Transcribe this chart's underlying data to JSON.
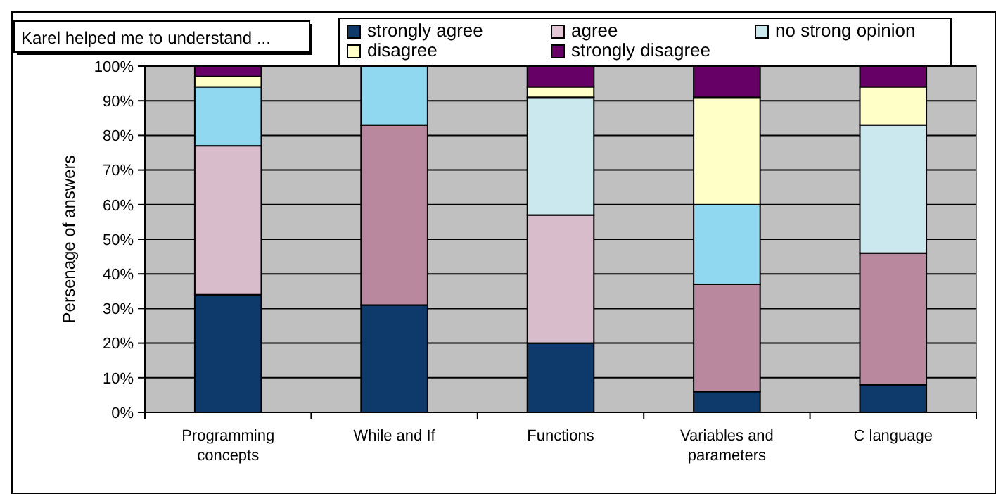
{
  "chart_data": {
    "type": "bar",
    "stacked": true,
    "title": "Karel helped me to understand ...",
    "ylabel": "Persenage of answers",
    "categories": [
      "Programming concepts",
      "While and If",
      "Functions",
      "Variables and parameters",
      "C language"
    ],
    "series": [
      {
        "name": "strongly agree",
        "color": "#0d3a6b",
        "values": [
          34,
          31,
          20,
          6,
          8
        ]
      },
      {
        "name": "agree",
        "color": "#e3c6d6",
        "colors": [
          "#d8bccc",
          "#b9889f",
          "#d8bccc",
          "#b9889f",
          "#b9889f"
        ],
        "values": [
          43,
          52,
          37,
          31,
          38
        ]
      },
      {
        "name": "no strong opinion",
        "color": "#cce8ef",
        "colors": [
          "#8fd8ef",
          "#8fd8ef",
          "#cce8ef",
          "#8fd8ef",
          "#cce8ef"
        ],
        "values": [
          17,
          17,
          34,
          23,
          37
        ]
      },
      {
        "name": "disagree",
        "color": "#ffffc8",
        "values": [
          3,
          0,
          3,
          31,
          11
        ]
      },
      {
        "name": "strongly disagree",
        "color": "#660066",
        "values": [
          3,
          0,
          6,
          9,
          6
        ]
      }
    ],
    "ylim": [
      0,
      100
    ],
    "yticks": [
      {
        "value": 0,
        "label": "0%"
      },
      {
        "value": 10,
        "label": "10%"
      },
      {
        "value": 20,
        "label": "20%"
      },
      {
        "value": 30,
        "label": "30%"
      },
      {
        "value": 40,
        "label": "40%"
      },
      {
        "value": 50,
        "label": "50%"
      },
      {
        "value": 60,
        "label": "60%"
      },
      {
        "value": 70,
        "label": "70%"
      },
      {
        "value": 80,
        "label": "80%"
      },
      {
        "value": 90,
        "label": "90%"
      },
      {
        "value": 100,
        "label": "100%"
      }
    ],
    "grid": "y",
    "legend": "top"
  }
}
